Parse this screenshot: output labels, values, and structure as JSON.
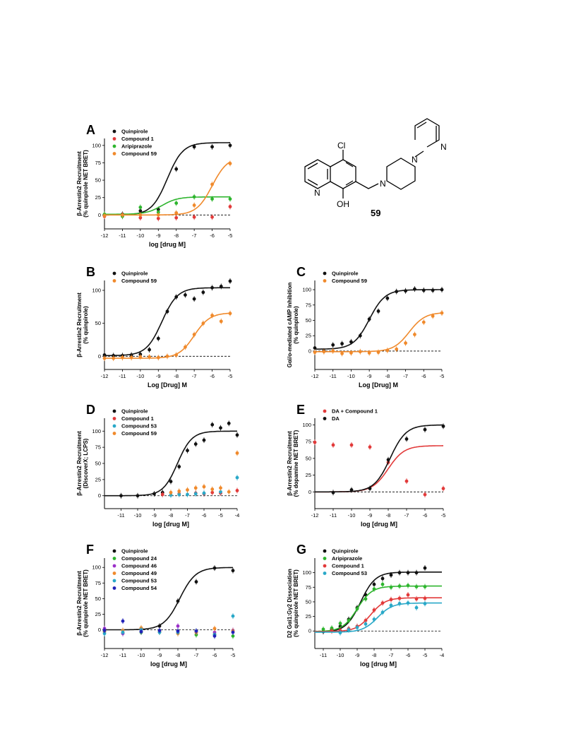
{
  "figure": {
    "structure_label": "59",
    "atoms": {
      "cl": "Cl",
      "oh": "OH",
      "n1": "N",
      "n2": "N",
      "n3": "N",
      "n4": "N"
    }
  },
  "colors": {
    "Quinpirole": "#111111",
    "DA": "#111111",
    "Compound 1": "#e23a3a",
    "DA + Compound 1": "#e23a3a",
    "Aripiprazole": "#2eb52e",
    "Compound 24": "#2eb52e",
    "Compound 59": "#f08a2c",
    "Compound 49": "#f08a2c",
    "Compound 53": "#29a8c8",
    "Compound 46": "#9b30c8",
    "Compound 54": "#2222b8"
  },
  "chart_data": [
    {
      "type": "scatter",
      "panel": "A",
      "xlabel": "log [drug M]",
      "ylabel": "β-Arrestin2 Recruitment",
      "ylabel2": "(% quinpirole NET BRET)",
      "xlim": [
        -12,
        -5
      ],
      "ylim": [
        -20,
        110
      ],
      "xticks": [
        "-12",
        "-11",
        "-10",
        "-9",
        "-8",
        "-7",
        "-6",
        "-5"
      ],
      "yticks": [
        "0",
        "25",
        "50",
        "75",
        "100"
      ],
      "legend": "top-left",
      "series": [
        {
          "name": "Quinpirole",
          "x": [
            -12,
            -11,
            -10,
            -9,
            -8,
            -7,
            -6,
            -5
          ],
          "y": [
            0,
            1,
            6,
            8,
            66,
            98,
            98,
            100
          ],
          "fit": [
            0,
            104,
            -8.5,
            1
          ]
        },
        {
          "name": "Compound 1",
          "x": [
            -12,
            -11,
            -10,
            -9,
            -8,
            -7,
            -6,
            -5
          ],
          "y": [
            -2,
            -1,
            -4,
            -5,
            -4,
            -3,
            -3,
            12
          ],
          "fit": null
        },
        {
          "name": "Aripiprazole",
          "x": [
            -12,
            -11,
            -10,
            -9,
            -8,
            -7,
            -6,
            -5
          ],
          "y": [
            1,
            -2,
            11,
            4,
            17,
            26,
            23,
            23
          ],
          "fit": [
            1,
            26,
            -8.8,
            1
          ]
        },
        {
          "name": "Compound 59",
          "x": [
            -12,
            -11,
            -10,
            -9,
            -8,
            -7,
            -6,
            -5
          ],
          "y": [
            -1,
            0,
            0,
            0,
            3,
            14,
            44,
            74
          ],
          "fit": [
            0,
            84,
            -6.0,
            1
          ]
        }
      ]
    },
    {
      "type": "scatter",
      "panel": "B",
      "xlabel": "Log [Drug] M",
      "ylabel": "β-Arrestin2 Recruitment",
      "ylabel2": "(% quinpirole)",
      "xlim": [
        -12,
        -5
      ],
      "ylim": [
        -20,
        115
      ],
      "xticks": [
        "-12",
        "-11",
        "-10",
        "-9",
        "-8",
        "-7",
        "-6",
        "-5"
      ],
      "yticks": [
        "0",
        "50",
        "100"
      ],
      "legend": "top-left",
      "series": [
        {
          "name": "Quinpirole",
          "x": [
            -12,
            -11.5,
            -11,
            -10.5,
            -10,
            -9.5,
            -9,
            -8.5,
            -8,
            -7.5,
            -7,
            -6.5,
            -6,
            -5.5,
            -5
          ],
          "y": [
            2,
            1,
            1,
            2,
            3,
            10,
            27,
            68,
            90,
            93,
            87,
            97,
            104,
            106,
            114
          ],
          "fit": [
            1,
            104,
            -8.8,
            1
          ]
        },
        {
          "name": "Compound 59",
          "x": [
            -12,
            -11.5,
            -11,
            -10.5,
            -10,
            -9.5,
            -9,
            -8.5,
            -8,
            -7.5,
            -7,
            -6.5,
            -6,
            -5.5,
            -5
          ],
          "y": [
            -3,
            -3,
            -2,
            -2,
            -1,
            -1,
            -2,
            0,
            2,
            14,
            33,
            50,
            62,
            53,
            65
          ],
          "fit": [
            -3,
            66,
            -7.0,
            1
          ]
        }
      ]
    },
    {
      "type": "scatter",
      "panel": "C",
      "xlabel": "Log [Drug] M",
      "ylabel": "Gαi/o-mediated cAMP Inhibition",
      "ylabel2": "(% quinpirole)",
      "xlim": [
        -12,
        -5
      ],
      "ylim": [
        -30,
        115
      ],
      "xticks": [
        "-12",
        "-11",
        "-10",
        "-9",
        "-8",
        "-7",
        "-6",
        "-5"
      ],
      "yticks": [
        "0",
        "25",
        "50",
        "75",
        "100"
      ],
      "legend": "top-left",
      "series": [
        {
          "name": "Quinpirole",
          "x": [
            -12,
            -11.5,
            -11,
            -10.5,
            -10,
            -9.5,
            -9,
            -8.5,
            -8,
            -7.5,
            -7,
            -6.5,
            -6,
            -5.5,
            -5
          ],
          "y": [
            5,
            0,
            10,
            12,
            15,
            25,
            52,
            65,
            86,
            97,
            98,
            101,
            99,
            99,
            100
          ],
          "fit": [
            3,
            100,
            -9.0,
            1
          ]
        },
        {
          "name": "Compound 59",
          "x": [
            -12,
            -11.5,
            -11,
            -10.5,
            -10,
            -9.5,
            -9,
            -8.5,
            -8,
            -7.5,
            -7,
            -6.5,
            -6,
            -5.5,
            -5
          ],
          "y": [
            -2,
            -1,
            0,
            -4,
            -3,
            -1,
            -3,
            -2,
            1,
            3,
            13,
            27,
            47,
            57,
            62
          ],
          "fit": [
            -1,
            63,
            -6.8,
            1
          ]
        }
      ]
    },
    {
      "type": "scatter",
      "panel": "D",
      "xlabel": "log [drug M]",
      "ylabel": "β-Arrestin2 Recruitment",
      "ylabel2": "(DiscoverX; LCPS)",
      "xlim": [
        -12,
        -4
      ],
      "ylim": [
        -20,
        120
      ],
      "xticks": [
        "-11",
        "-10",
        "-9",
        "-8",
        "-7",
        "-6",
        "-5",
        "-4"
      ],
      "yticks": [
        "0",
        "25",
        "50",
        "75",
        "100"
      ],
      "legend": "top-left",
      "series": [
        {
          "name": "Quinpirole",
          "x": [
            -11,
            -10,
            -9,
            -8.5,
            -8,
            -7.5,
            -7,
            -6.5,
            -6,
            -5.5,
            -5,
            -4.5,
            -4
          ],
          "y": [
            0,
            0,
            3,
            5,
            22,
            45,
            70,
            80,
            86,
            110,
            105,
            112,
            94
          ],
          "fit": [
            0,
            100,
            -7.6,
            1
          ]
        },
        {
          "name": "Compound 1",
          "x": [
            -8.5,
            -7.5,
            -6.5,
            -6,
            -5.5,
            -5,
            -4
          ],
          "y": [
            2,
            3,
            4,
            3,
            5,
            4,
            8
          ],
          "fit": null
        },
        {
          "name": "Compound 53",
          "x": [
            -8,
            -7.5,
            -7,
            -6.5,
            -6,
            -5,
            -4
          ],
          "y": [
            1,
            2,
            2,
            3,
            4,
            6,
            28
          ],
          "fit": null
        },
        {
          "name": "Compound 59",
          "x": [
            -8,
            -7.5,
            -7,
            -6.5,
            -6,
            -5.5,
            -5,
            -4.5,
            -4
          ],
          "y": [
            5,
            7,
            9,
            12,
            14,
            10,
            12,
            6,
            66
          ],
          "fit": null
        }
      ]
    },
    {
      "type": "scatter",
      "panel": "E",
      "xlabel": "log [drug M]",
      "ylabel": "β-Arrestin2 Recruitment",
      "ylabel2": "(% dopamine NET BRET)",
      "xlim": [
        -12,
        -5
      ],
      "ylim": [
        -25,
        110
      ],
      "xticks": [
        "-12",
        "-11",
        "-10",
        "-9",
        "-8",
        "-7",
        "-6",
        "-5"
      ],
      "yticks": [
        "0",
        "25",
        "50",
        "75",
        "100"
      ],
      "legend": "top-left",
      "series": [
        {
          "name": "DA + Compound 1",
          "x": [
            -12,
            -11,
            -10,
            -9,
            -8,
            -7,
            -6,
            -5
          ],
          "y": [
            74,
            70,
            70,
            67,
            44,
            16,
            -4,
            5
          ],
          "fit": [
            69,
            0,
            -8.0,
            -1
          ]
        },
        {
          "name": "DA",
          "x": [
            -11,
            -10,
            -9,
            -8,
            -7,
            -6,
            -5
          ],
          "y": [
            -1,
            3,
            5,
            48,
            79,
            93,
            98
          ],
          "fit": [
            0,
            100,
            -7.9,
            1
          ]
        }
      ]
    },
    {
      "type": "scatter",
      "panel": "F",
      "xlabel": "log [drug M]",
      "ylabel": "β-Arrestin2 Recruitment",
      "ylabel2": "(% quinpirole NET BRET)",
      "xlim": [
        -12,
        -5
      ],
      "ylim": [
        -30,
        115
      ],
      "xticks": [
        "-12",
        "-11",
        "-10",
        "-9",
        "-8",
        "-7",
        "-6",
        "-5"
      ],
      "yticks": [
        "0",
        "25",
        "50",
        "75",
        "100"
      ],
      "legend": "top-left",
      "series": [
        {
          "name": "Quinpirole",
          "x": [
            -10,
            -9,
            -8,
            -7,
            -6,
            -5
          ],
          "y": [
            1,
            6,
            46,
            77,
            99,
            95
          ],
          "fit": [
            0,
            100,
            -7.9,
            1
          ]
        },
        {
          "name": "Compound 24",
          "x": [
            -12,
            -11,
            -10,
            -9,
            -8,
            -7,
            -6,
            -5
          ],
          "y": [
            -3,
            -5,
            -4,
            -4,
            -5,
            -8,
            -7,
            -10
          ],
          "fit": null
        },
        {
          "name": "Compound 46",
          "x": [
            -12,
            -11,
            -10,
            -9,
            -8,
            -7,
            -6,
            -5
          ],
          "y": [
            2,
            -6,
            -2,
            -3,
            6,
            -4,
            -4,
            -1
          ],
          "fit": null
        },
        {
          "name": "Compound 49",
          "x": [
            -12,
            -11,
            -10,
            -9,
            -8,
            -7,
            -6,
            -5
          ],
          "y": [
            -3,
            -1,
            3,
            -3,
            -6,
            -4,
            2,
            -2
          ],
          "fit": null
        },
        {
          "name": "Compound 53",
          "x": [
            -12,
            -11,
            -10,
            -9,
            -8,
            -7,
            -6,
            -5
          ],
          "y": [
            -6,
            -4,
            0,
            -4,
            -4,
            -2,
            -8,
            22
          ],
          "fit": null
        },
        {
          "name": "Compound 54",
          "x": [
            -12,
            -11,
            -10,
            -9,
            -8,
            -7,
            -6,
            -5
          ],
          "y": [
            -1,
            14,
            -3,
            -1,
            -2,
            -2,
            -10,
            -4
          ],
          "fit": null
        }
      ]
    },
    {
      "type": "scatter",
      "panel": "G",
      "xlabel": "log [drug M]",
      "ylabel": "D2 Gαi1:Gγ2 Dissociation",
      "ylabel2": "(% quinpirole NET BRET)",
      "xlim": [
        -11.5,
        -4
      ],
      "ylim": [
        -30,
        125
      ],
      "xticks": [
        "-11",
        "-10",
        "-9",
        "-8",
        "-7",
        "-6",
        "-5",
        "-4"
      ],
      "yticks": [
        "0",
        "25",
        "50",
        "75",
        "100"
      ],
      "legend": "top-left",
      "series": [
        {
          "name": "Quinpirole",
          "x": [
            -11,
            -10.5,
            -10,
            -9.5,
            -9,
            -8.5,
            -8,
            -7.5,
            -7,
            -6.5,
            -6,
            -5.5,
            -5
          ],
          "y": [
            -1,
            3,
            8,
            20,
            40,
            62,
            80,
            90,
            96,
            100,
            100,
            100,
            108
          ],
          "fit": [
            -2,
            101,
            -8.8,
            1
          ]
        },
        {
          "name": "Aripiprazole",
          "x": [
            -11,
            -10.5,
            -10,
            -9.5,
            -9,
            -8.5,
            -8,
            -7.5,
            -7,
            -6.5,
            -6,
            -5.5,
            -5
          ],
          "y": [
            3,
            5,
            13,
            18,
            38,
            55,
            72,
            80,
            75,
            77,
            78,
            76,
            76
          ],
          "fit": [
            -1,
            77,
            -9.0,
            1
          ]
        },
        {
          "name": "Compound 1",
          "x": [
            -10.5,
            -10,
            -9.5,
            -9,
            -8.5,
            -8,
            -7.5,
            -7,
            -6.5,
            -6,
            -5.5,
            -5
          ],
          "y": [
            0,
            1,
            4,
            8,
            18,
            36,
            48,
            54,
            56,
            62,
            55,
            56
          ],
          "fit": [
            -1,
            57,
            -8.2,
            1
          ]
        },
        {
          "name": "Compound 53",
          "x": [
            -10,
            -9.5,
            -9,
            -8.5,
            -8,
            -7.5,
            -7,
            -6.5,
            -6,
            -5.5,
            -5
          ],
          "y": [
            -3,
            2,
            6,
            12,
            20,
            32,
            44,
            47,
            48,
            40,
            47
          ],
          "fit": [
            -2,
            48,
            -7.8,
            1
          ]
        }
      ]
    }
  ]
}
